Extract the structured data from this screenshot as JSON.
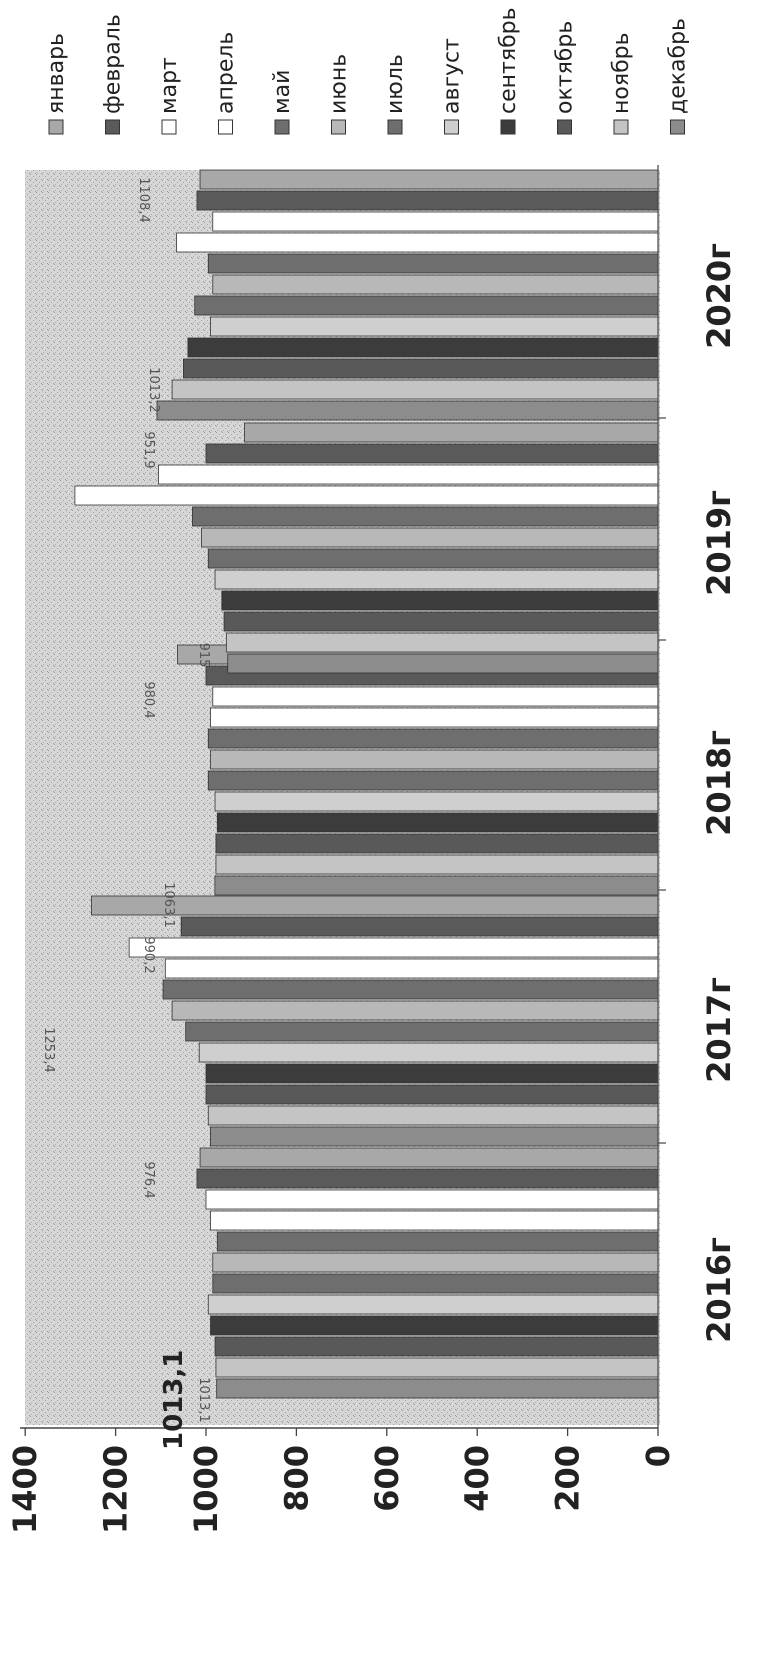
{
  "chart_data": {
    "type": "bar",
    "orientation": "rotated-90-clockwise",
    "categories": [
      "2016г",
      "2017г",
      "2018г",
      "2019г",
      "2020г"
    ],
    "yticks": [
      "0",
      "200",
      "400",
      "600",
      "800",
      "1000",
      "1200",
      "1400"
    ],
    "ylim": [
      0,
      1400
    ],
    "grid": false,
    "legend_position": "right",
    "series": [
      {
        "name": "январь",
        "color": "#a8a8a8",
        "values": [
          1013.1,
          1253.4,
          1063.1,
          915.0,
          1013.2
        ]
      },
      {
        "name": "февраль",
        "color": "#5a5a5a",
        "values": [
          1020,
          1055,
          1000,
          1000,
          1020
        ]
      },
      {
        "name": "март",
        "color": "#ffffff",
        "values": [
          1000,
          1170,
          985,
          1105,
          985
        ]
      },
      {
        "name": "апрель",
        "color": "#ffffff",
        "values": [
          990,
          1090,
          990,
          1290,
          1065
        ]
      },
      {
        "name": "май",
        "color": "#6e6e6e",
        "values": [
          975,
          1095,
          995,
          1030,
          995
        ]
      },
      {
        "name": "июнь",
        "color": "#b8b8b8",
        "values": [
          985,
          1075,
          990,
          1010,
          985
        ]
      },
      {
        "name": "июль",
        "color": "#6e6e6e",
        "values": [
          985,
          1045,
          995,
          995,
          1025
        ]
      },
      {
        "name": "август",
        "color": "#cfcfcf",
        "values": [
          995,
          1015,
          980,
          980,
          990
        ]
      },
      {
        "name": "сентябрь",
        "color": "#3c3c3c",
        "values": [
          990,
          1000,
          975,
          965,
          1040
        ]
      },
      {
        "name": "октябрь",
        "color": "#595959",
        "values": [
          980,
          1000,
          978,
          960,
          1050
        ]
      },
      {
        "name": "ноябрь",
        "color": "#c4c4c4",
        "values": [
          978,
          995,
          978,
          955,
          1075
        ]
      },
      {
        "name": "декабрь",
        "color": "#8c8c8c",
        "values": [
          976.4,
          990.2,
          980.4,
          951.9,
          1108.4
        ]
      }
    ],
    "data_labels": [
      "1013,1",
      "1253,4",
      "990,2",
      "1063,1",
      "980,4",
      "915",
      "951,9",
      "1013,2",
      "1108,4",
      "976,4"
    ],
    "annotations": [
      "1013,1"
    ]
  }
}
